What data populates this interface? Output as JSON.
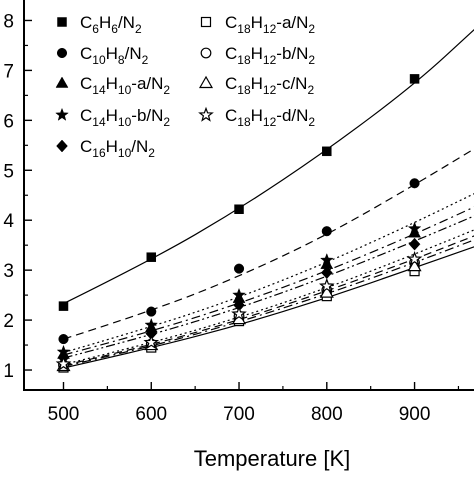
{
  "chart_data": {
    "type": "scatter",
    "title": "",
    "xlabel": "Temperature [K]",
    "ylabel": "",
    "xlim": [
      455,
      970
    ],
    "ylim": [
      0.6,
      8.45
    ],
    "x_ticks": [
      "500",
      "600",
      "700",
      "800",
      "900"
    ],
    "y_ticks": [
      "1",
      "2",
      "3",
      "4",
      "5",
      "6",
      "7",
      "8"
    ],
    "x_tick_values": [
      500,
      600,
      700,
      800,
      900
    ],
    "y_tick_values": [
      1,
      2,
      3,
      4,
      5,
      6,
      7,
      8
    ],
    "legend_position": "top-left",
    "x": [
      500,
      600,
      700,
      800,
      900
    ],
    "series": [
      {
        "name": "C6H6/N2",
        "formula": [
          [
            "C",
            ""
          ],
          [
            "6",
            "sub"
          ],
          [
            "H",
            ""
          ],
          [
            "6",
            "sub"
          ],
          [
            "/N",
            ""
          ],
          [
            "2",
            "sub"
          ]
        ],
        "marker": "square-filled",
        "line": "solid",
        "values": [
          2.28,
          3.26,
          4.22,
          5.38,
          6.83
        ],
        "fit": [
          [
            500,
            2.33
          ],
          [
            600,
            3.2
          ],
          [
            700,
            4.22
          ],
          [
            800,
            5.4
          ],
          [
            900,
            6.72
          ],
          [
            970,
            7.85
          ]
        ]
      },
      {
        "name": "C10H8/N2",
        "formula": [
          [
            "C",
            ""
          ],
          [
            "10",
            "sub"
          ],
          [
            "H",
            ""
          ],
          [
            "8",
            "sub"
          ],
          [
            "/N",
            ""
          ],
          [
            "2",
            "sub"
          ]
        ],
        "marker": "circle-filled",
        "line": "dashed",
        "values": [
          1.62,
          2.17,
          3.03,
          3.78,
          4.74
        ],
        "fit": [
          [
            500,
            1.62
          ],
          [
            600,
            2.18
          ],
          [
            700,
            2.87
          ],
          [
            800,
            3.7
          ],
          [
            900,
            4.71
          ],
          [
            970,
            5.45
          ]
        ]
      },
      {
        "name": "C14H10-a/N2",
        "formula": [
          [
            "C",
            ""
          ],
          [
            "14",
            "sub"
          ],
          [
            "H",
            ""
          ],
          [
            "10",
            "sub"
          ],
          [
            "-a/N",
            ""
          ],
          [
            "2",
            "sub"
          ]
        ],
        "marker": "triangle-filled",
        "line": "dashdot",
        "values": [
          1.32,
          1.85,
          2.44,
          3.12,
          3.75
        ],
        "fit": [
          [
            500,
            1.3
          ],
          [
            600,
            1.77
          ],
          [
            700,
            2.33
          ],
          [
            800,
            2.98
          ],
          [
            900,
            3.72
          ],
          [
            970,
            4.28
          ]
        ]
      },
      {
        "name": "C14H10-b/N2",
        "formula": [
          [
            "C",
            ""
          ],
          [
            "14",
            "sub"
          ],
          [
            "H",
            ""
          ],
          [
            "10",
            "sub"
          ],
          [
            "-b/N",
            ""
          ],
          [
            "2",
            "sub"
          ]
        ],
        "marker": "star-filled",
        "line": "dotted",
        "values": [
          1.36,
          1.9,
          2.5,
          3.2,
          3.83
        ],
        "fit": [
          [
            500,
            1.35
          ],
          [
            600,
            1.86
          ],
          [
            700,
            2.45
          ],
          [
            800,
            3.15
          ],
          [
            900,
            3.95
          ],
          [
            970,
            4.55
          ]
        ]
      },
      {
        "name": "C16H10/N2",
        "formula": [
          [
            "C",
            ""
          ],
          [
            "16",
            "sub"
          ],
          [
            "H",
            ""
          ],
          [
            "10",
            "sub"
          ],
          [
            "/N",
            ""
          ],
          [
            "2",
            "sub"
          ]
        ],
        "marker": "diamond-filled",
        "line": "dashdotdot",
        "values": [
          1.25,
          1.73,
          2.3,
          2.95,
          3.52
        ],
        "fit": [
          [
            500,
            1.24
          ],
          [
            600,
            1.7
          ],
          [
            700,
            2.24
          ],
          [
            800,
            2.87
          ],
          [
            900,
            3.58
          ],
          [
            970,
            4.1
          ]
        ]
      },
      {
        "name": "C18H12-a/N2",
        "formula": [
          [
            "C",
            ""
          ],
          [
            "18",
            "sub"
          ],
          [
            "H",
            ""
          ],
          [
            "12",
            "sub"
          ],
          [
            "-a/N",
            ""
          ],
          [
            "2",
            "sub"
          ]
        ],
        "marker": "square-open",
        "line": "solid",
        "values": [
          1.05,
          1.45,
          1.98,
          2.48,
          2.98
        ],
        "fit": [
          [
            500,
            1.04
          ],
          [
            600,
            1.44
          ],
          [
            700,
            1.9
          ],
          [
            800,
            2.44
          ],
          [
            900,
            3.05
          ],
          [
            970,
            3.48
          ]
        ]
      },
      {
        "name": "C18H12-b/N2",
        "formula": [
          [
            "C",
            ""
          ],
          [
            "18",
            "sub"
          ],
          [
            "H",
            ""
          ],
          [
            "12",
            "sub"
          ],
          [
            "-b/N",
            ""
          ],
          [
            "2",
            "sub"
          ]
        ],
        "marker": "circle-open",
        "line": "dashed",
        "values": [
          1.1,
          1.52,
          2.08,
          2.6,
          3.15
        ],
        "fit": [
          [
            500,
            1.09
          ],
          [
            600,
            1.5
          ],
          [
            700,
            2.0
          ],
          [
            800,
            2.58
          ],
          [
            900,
            3.22
          ],
          [
            970,
            3.7
          ]
        ]
      },
      {
        "name": "C18H12-c/N2",
        "formula": [
          [
            "C",
            ""
          ],
          [
            "18",
            "sub"
          ],
          [
            "H",
            ""
          ],
          [
            "12",
            "sub"
          ],
          [
            "-c/N",
            ""
          ],
          [
            "2",
            "sub"
          ]
        ],
        "marker": "triangle-open",
        "line": "dashdot",
        "values": [
          1.08,
          1.5,
          2.02,
          2.55,
          3.08
        ],
        "fit": [
          [
            500,
            1.07
          ],
          [
            600,
            1.47
          ],
          [
            700,
            1.96
          ],
          [
            800,
            2.52
          ],
          [
            900,
            3.15
          ],
          [
            970,
            3.62
          ]
        ]
      },
      {
        "name": "C18H12-d/N2",
        "formula": [
          [
            "C",
            ""
          ],
          [
            "18",
            "sub"
          ],
          [
            "H",
            ""
          ],
          [
            "12",
            "sub"
          ],
          [
            "-d/N",
            ""
          ],
          [
            "2",
            "sub"
          ]
        ],
        "marker": "star-open",
        "line": "dotted",
        "values": [
          1.12,
          1.55,
          2.12,
          2.68,
          3.22
        ],
        "fit": [
          [
            500,
            1.11
          ],
          [
            600,
            1.54
          ],
          [
            700,
            2.05
          ],
          [
            800,
            2.64
          ],
          [
            900,
            3.32
          ],
          [
            970,
            3.82
          ]
        ]
      }
    ]
  }
}
